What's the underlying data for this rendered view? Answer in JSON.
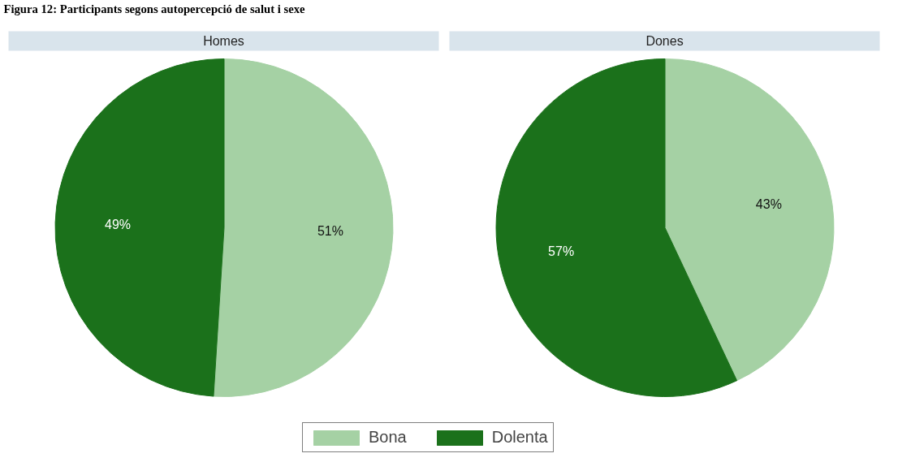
{
  "chart_data": {
    "type": "pie",
    "title": "Figura 12: Participants segons autopercepció de salut i sexe",
    "categories": [
      "Bona",
      "Dolenta"
    ],
    "colors": [
      "#a5d1a4",
      "#1b711b"
    ],
    "legend": "bottom",
    "series": [
      {
        "name": "Homes",
        "values": [
          51,
          49
        ],
        "value_labels": [
          "51%",
          "49%"
        ]
      },
      {
        "name": "Dones",
        "values": [
          43,
          57
        ],
        "value_labels": [
          "43%",
          "57%"
        ]
      }
    ]
  }
}
